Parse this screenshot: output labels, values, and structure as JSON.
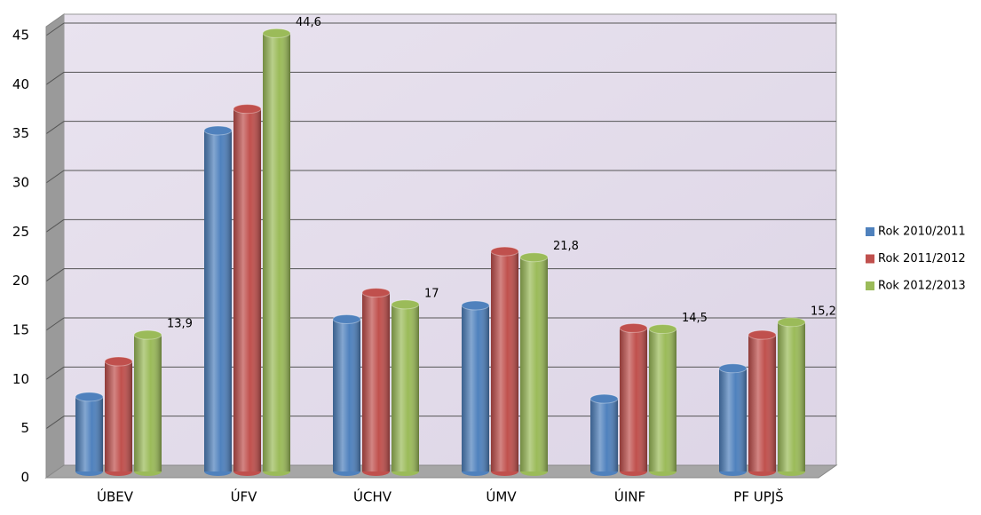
{
  "chart_data": {
    "type": "bar",
    "categories": [
      "ÚBEV",
      "ÚFV",
      "ÚCHV",
      "ÚMV",
      "ÚINF",
      "PF UPJŠ"
    ],
    "series": [
      {
        "name": "Rok 2010/2011",
        "color": "#4f81bd",
        "values": [
          7.6,
          34.7,
          15.5,
          16.9,
          7.4,
          10.5
        ]
      },
      {
        "name": "Rok 2011/2012",
        "color": "#c0504d",
        "values": [
          11.2,
          36.9,
          18.2,
          22.4,
          14.6,
          13.9
        ]
      },
      {
        "name": "Rok 2012/2013",
        "color": "#9bbb59",
        "values": [
          13.9,
          44.6,
          17,
          21.8,
          14.5,
          15.2
        ],
        "value_labels": [
          "13,9",
          "44,6",
          "17",
          "21,8",
          "14,5",
          "15,2"
        ]
      }
    ],
    "ylim": [
      0,
      45
    ],
    "yticks": [
      0,
      5,
      10,
      15,
      20,
      25,
      30,
      35,
      40,
      45
    ],
    "grid": true,
    "legend": "right"
  }
}
